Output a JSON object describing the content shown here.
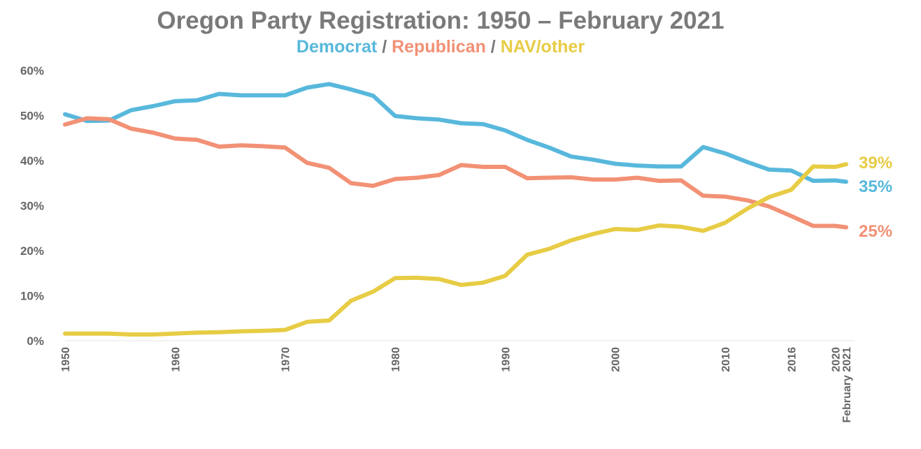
{
  "chart_data": {
    "type": "line",
    "title": "Oregon Party Registration: 1950 – February 2021",
    "subtitle": {
      "parts": [
        "Democrat",
        "Republican",
        "NAV/other"
      ],
      "separator": " / "
    },
    "xlabel": "",
    "ylabel": "",
    "ylim": [
      0,
      60
    ],
    "y_ticks": [
      "0%",
      "10%",
      "20%",
      "30%",
      "40%",
      "50%",
      "60%"
    ],
    "x_ticks": [
      "1950",
      "1960",
      "1970",
      "1980",
      "1990",
      "2000",
      "2010",
      "2016",
      "2020",
      "February 2021"
    ],
    "x": [
      1950,
      1952,
      1954,
      1956,
      1958,
      1960,
      1962,
      1964,
      1966,
      1968,
      1970,
      1972,
      1974,
      1976,
      1978,
      1980,
      1982,
      1984,
      1986,
      1988,
      1990,
      1992,
      1994,
      1996,
      1998,
      2000,
      2002,
      2004,
      2006,
      2008,
      2010,
      2012,
      2014,
      2016,
      2018,
      2020,
      2021
    ],
    "series": [
      {
        "name": "Democrat",
        "color": "#58b8dc",
        "end_label": "35%",
        "values": [
          50.3,
          48.8,
          48.9,
          51.2,
          52.1,
          53.2,
          53.4,
          54.8,
          54.5,
          54.5,
          54.5,
          56.2,
          57.0,
          55.8,
          54.4,
          49.9,
          49.4,
          49.1,
          48.3,
          48.1,
          46.7,
          44.6,
          42.9,
          40.9,
          40.2,
          39.3,
          38.9,
          38.7,
          38.7,
          43.0,
          41.6,
          39.7,
          38.0,
          37.8,
          35.5,
          35.6,
          35.3
        ]
      },
      {
        "name": "Republican",
        "color": "#f29175",
        "end_label": "25%",
        "values": [
          48.0,
          49.4,
          49.2,
          47.1,
          46.2,
          44.9,
          44.6,
          43.1,
          43.4,
          43.2,
          42.9,
          39.5,
          38.4,
          35.0,
          34.4,
          35.9,
          36.2,
          36.8,
          39.0,
          38.6,
          38.6,
          36.1,
          36.2,
          36.3,
          35.8,
          35.8,
          36.2,
          35.5,
          35.6,
          32.2,
          32.0,
          31.2,
          29.8,
          27.7,
          25.5,
          25.5,
          25.2
        ]
      },
      {
        "name": "NAV/other",
        "color": "#e7cc45",
        "end_label": "39%",
        "values": [
          1.6,
          1.6,
          1.6,
          1.4,
          1.4,
          1.6,
          1.8,
          1.9,
          2.1,
          2.2,
          2.4,
          4.2,
          4.5,
          8.9,
          10.9,
          13.9,
          14.0,
          13.7,
          12.4,
          12.9,
          14.4,
          19.1,
          20.4,
          22.3,
          23.7,
          24.8,
          24.6,
          25.6,
          25.3,
          24.4,
          26.2,
          29.3,
          31.9,
          33.5,
          38.7,
          38.6,
          39.2
        ]
      }
    ],
    "x_tick_years": [
      1950,
      1960,
      1970,
      1980,
      1990,
      2000,
      2010,
      2016,
      2020,
      2021
    ],
    "grid": false,
    "legend": "subtitle"
  }
}
